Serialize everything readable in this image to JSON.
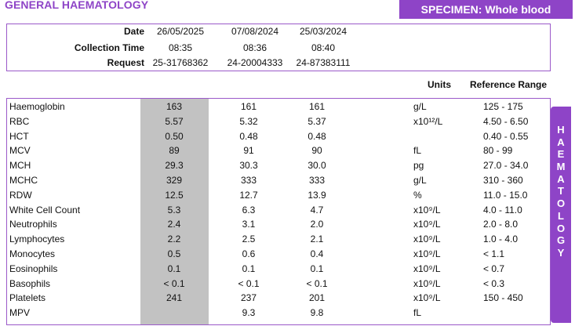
{
  "section_title": "GENERAL HAEMATOLOGY",
  "specimen": "SPECIMEN: Whole blood",
  "header": {
    "date_label": "Date",
    "collection_label": "Collection Time",
    "request_label": "Request",
    "dates": [
      "26/05/2025",
      "07/08/2024",
      "25/03/2024"
    ],
    "times": [
      "08:35",
      "08:36",
      "08:40"
    ],
    "requests": [
      "25-31768362",
      "24-20004333",
      "24-87383111"
    ]
  },
  "columns": {
    "units": "Units",
    "reference": "Reference Range"
  },
  "tests": [
    {
      "name": "Haemoglobin",
      "v": [
        "163",
        "161",
        "161"
      ],
      "unit": "g/L",
      "ref": "125 - 175"
    },
    {
      "name": "RBC",
      "v": [
        "5.57",
        "5.32",
        "5.37"
      ],
      "unit": "x10¹²/L",
      "ref": "4.50 - 6.50"
    },
    {
      "name": "HCT",
      "v": [
        "0.50",
        "0.48",
        "0.48"
      ],
      "unit": "",
      "ref": "0.40 - 0.55"
    },
    {
      "name": "MCV",
      "v": [
        "89",
        "91",
        "90"
      ],
      "unit": "fL",
      "ref": "80 - 99"
    },
    {
      "name": "MCH",
      "v": [
        "29.3",
        "30.3",
        "30.0"
      ],
      "unit": "pg",
      "ref": "27.0 - 34.0"
    },
    {
      "name": "MCHC",
      "v": [
        "329",
        "333",
        "333"
      ],
      "unit": "g/L",
      "ref": "310 - 360"
    },
    {
      "name": "RDW",
      "v": [
        "12.5",
        "12.7",
        "13.9"
      ],
      "unit": "%",
      "ref": "11.0 - 15.0"
    },
    {
      "name": "White Cell Count",
      "v": [
        "5.3",
        "6.3",
        "4.7"
      ],
      "unit": "x10⁹/L",
      "ref": "4.0 - 11.0"
    },
    {
      "name": "Neutrophils",
      "v": [
        "2.4",
        "3.1",
        "2.0"
      ],
      "unit": "x10⁹/L",
      "ref": "2.0 - 8.0"
    },
    {
      "name": "Lymphocytes",
      "v": [
        "2.2",
        "2.5",
        "2.1"
      ],
      "unit": "x10⁹/L",
      "ref": "1.0 - 4.0"
    },
    {
      "name": "Monocytes",
      "v": [
        "0.5",
        "0.6",
        "0.4"
      ],
      "unit": "x10⁹/L",
      "ref": "< 1.1"
    },
    {
      "name": "Eosinophils",
      "v": [
        "0.1",
        "0.1",
        "0.1"
      ],
      "unit": "x10⁹/L",
      "ref": "< 0.7"
    },
    {
      "name": "Basophils",
      "v": [
        "< 0.1",
        "< 0.1",
        "< 0.1"
      ],
      "unit": "x10⁹/L",
      "ref": "< 0.3"
    },
    {
      "name": "Platelets",
      "v": [
        "241",
        "237",
        "201"
      ],
      "unit": "x10⁹/L",
      "ref": "150 - 450"
    },
    {
      "name": "MPV",
      "v": [
        "",
        "9.3",
        "9.8"
      ],
      "unit": "fL",
      "ref": ""
    }
  ],
  "side_tab": "HAEMATOLOGY",
  "colors": {
    "accent": "#8e44c7",
    "highlight": "#c2c2c2"
  }
}
